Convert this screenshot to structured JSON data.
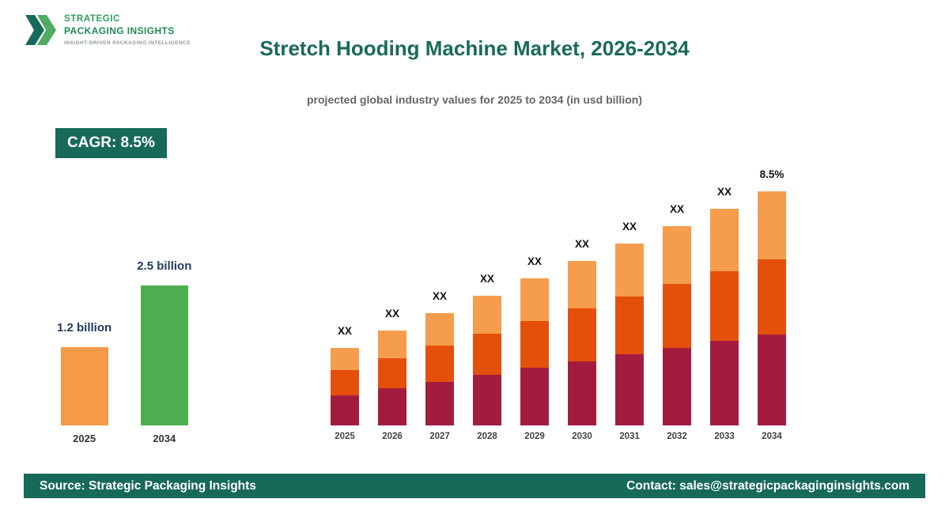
{
  "logo": {
    "line1": "STRATEGIC",
    "line2": "PACKAGING INSIGHTS",
    "tagline": "INSIGHT-DRIVEN PACKAGING INTELLIGENCE"
  },
  "header": {
    "title": "Stretch Hooding Machine Market, 2026-2034",
    "subtitle": "projected global industry values for 2025 to 2034 (in usd billion)"
  },
  "cagr_badge": "CAGR: 8.5%",
  "footer": {
    "source": "Source: Strategic Packaging Insights",
    "contact": "Contact: sales@strategicpackaginginsights.com"
  },
  "colors": {
    "brand_teal": "#17695a",
    "title_green": "#1a6a58",
    "logo_green": "#2e9e5f",
    "value_label_navy": "#1f3b63",
    "orange": "#f59a47",
    "green": "#4cae4f",
    "crimson": "#a31c40",
    "orange_red": "#e4500a",
    "light_orange": "#f59d4d"
  },
  "chart_data": [
    {
      "type": "bar",
      "name": "growth-summary",
      "categories": [
        "2025",
        "2034"
      ],
      "values": [
        1.2,
        2.5
      ],
      "value_labels": [
        "1.2 billion",
        "2.5 billion"
      ],
      "colors": [
        "#f59a47",
        "#4cae4f"
      ],
      "ylabel": "USD billion",
      "grid": false,
      "legend": "none"
    },
    {
      "type": "bar",
      "name": "stacked-projection",
      "stacked": true,
      "categories": [
        "2025",
        "2026",
        "2027",
        "2028",
        "2029",
        "2030",
        "2031",
        "2032",
        "2033",
        "2034"
      ],
      "bar_labels": [
        "XX",
        "XX",
        "XX",
        "XX",
        "XX",
        "XX",
        "XX",
        "XX",
        "XX",
        "8.5%"
      ],
      "values": [
        1.2,
        1.3,
        1.41,
        1.53,
        1.66,
        1.8,
        1.96,
        2.12,
        2.3,
        2.5
      ],
      "values_note": "intermediate years shown as XX on chart; estimated from 1.2 to 2.5 at 8.5% CAGR",
      "segment_colors_bottom_to_top": [
        "#a31c40",
        "#e4500a",
        "#f59d4d"
      ],
      "segment_fractions_bottom_to_top": [
        0.39,
        0.32,
        0.29
      ],
      "cagr": "8.5%",
      "grid": false,
      "legend": "none"
    }
  ]
}
